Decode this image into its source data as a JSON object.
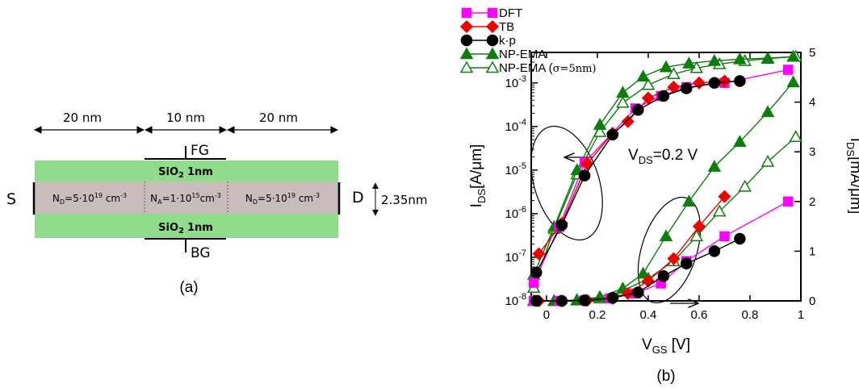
{
  "panel_a": {
    "caption": "(a)",
    "dims": [
      "20 nm",
      "10 nm",
      "20 nm"
    ],
    "gate_top": "FG",
    "gate_bottom": "BG",
    "source": "S",
    "drain": "D",
    "oxide_label": "SiO",
    "oxide_sub": "2",
    "oxide_thickness": "1nm",
    "thickness": "2.35nm",
    "regions": [
      {
        "n": "N",
        "sub": "D",
        "eq": "=5·10",
        "exp": "19",
        "unit": " cm",
        "uexp": "-3"
      },
      {
        "n": "N",
        "sub": "A",
        "eq": "=1·10",
        "exp": "15",
        "unit": "cm",
        "uexp": "-3"
      },
      {
        "n": "N",
        "sub": "D",
        "eq": "=5·10",
        "exp": "19",
        "unit": " cm",
        "uexp": "-3"
      }
    ],
    "colors": {
      "oxide": "#8fdc8a",
      "silicon": "#c9bcbc"
    }
  },
  "panel_b": {
    "caption": "(b)",
    "xlabel_main": "V",
    "xlabel_sub": "GS",
    "xlabel_unit": " [V]",
    "ylabel_left_main": "I",
    "ylabel_left_sub": "DS",
    "ylabel_left_unit": "[A/μm]",
    "ylabel_right_main": "I",
    "ylabel_right_sub": "DS",
    "ylabel_right_unit": "[mA/μm]",
    "annotation_main": "V",
    "annotation_sub": "DS",
    "annotation_rest": "=0.2 V",
    "legend": [
      "DFT",
      "TB",
      "k·p",
      "NP-EMA",
      "NP-EMA ("
    ],
    "legend_sigma": "σ=5nm)"
  },
  "chart_data": {
    "type": "line",
    "xlabel": "VGS [V]",
    "ylabel_left": "IDS[A/μm]",
    "ylabel_right": "IDS[mA/μm]",
    "xlim": [
      -0.06,
      1.0
    ],
    "ylim_left_log": [
      1e-08,
      0.005
    ],
    "ylim_right_linear": [
      0,
      5
    ],
    "x_ticks": [
      "0",
      "0.2",
      "0.4",
      "0.6",
      "0.8",
      "1"
    ],
    "y_left_ticks": [
      "10-8",
      "10-7",
      "10-6",
      "10-5",
      "10-4",
      "10-3"
    ],
    "y_right_ticks": [
      "0",
      "1",
      "2",
      "3",
      "4",
      "5"
    ],
    "annotation": "VDS=0.2 V",
    "legend_position": "top-left outside",
    "series": [
      {
        "name": "DFT",
        "color": "#ff00ff",
        "marker": "square",
        "filled": true,
        "log": [
          [
            -0.05,
            2.6e-08
          ],
          [
            0.05,
            5e-07
          ],
          [
            0.15,
            1.5e-05
          ],
          [
            0.35,
            0.00026
          ],
          [
            0.45,
            0.0005
          ],
          [
            0.55,
            0.0008
          ],
          [
            0.7,
            0.001
          ],
          [
            0.95,
            0.002
          ]
        ],
        "linear": [
          [
            -0.05,
            0.0
          ],
          [
            0.05,
            0.0
          ],
          [
            0.15,
            0.01
          ],
          [
            0.25,
            0.05
          ],
          [
            0.35,
            0.15
          ],
          [
            0.45,
            0.35
          ],
          [
            0.55,
            0.8
          ],
          [
            0.7,
            1.3
          ],
          [
            0.95,
            2.0
          ]
        ]
      },
      {
        "name": "TB",
        "color": "#ee0000",
        "marker": "diamond",
        "filled": true,
        "log": [
          [
            -0.03,
            1.2e-07
          ],
          [
            0.06,
            6e-07
          ],
          [
            0.16,
            1.4e-05
          ],
          [
            0.26,
            7e-05
          ],
          [
            0.32,
            0.00013
          ],
          [
            0.4,
            0.00045
          ],
          [
            0.5,
            0.0008
          ],
          [
            0.6,
            0.001
          ],
          [
            0.7,
            0.0011
          ]
        ],
        "linear": [
          [
            -0.03,
            0.0
          ],
          [
            0.06,
            0.0
          ],
          [
            0.16,
            0.01
          ],
          [
            0.26,
            0.05
          ],
          [
            0.32,
            0.15
          ],
          [
            0.4,
            0.4
          ],
          [
            0.5,
            0.85
          ],
          [
            0.6,
            1.5
          ],
          [
            0.7,
            2.1
          ]
        ]
      },
      {
        "name": "k·p",
        "color": "#000000",
        "marker": "circle",
        "filled": true,
        "log": [
          [
            -0.04,
            4.5e-08
          ],
          [
            0.06,
            5.5e-07
          ],
          [
            0.15,
            7.5e-06
          ],
          [
            0.26,
            6.5e-05
          ],
          [
            0.36,
            0.00024
          ],
          [
            0.46,
            0.0005
          ],
          [
            0.55,
            0.00075
          ],
          [
            0.66,
            0.001
          ],
          [
            0.76,
            0.0011
          ]
        ],
        "linear": [
          [
            -0.04,
            0.0
          ],
          [
            0.06,
            0.0
          ],
          [
            0.15,
            0.01
          ],
          [
            0.26,
            0.06
          ],
          [
            0.36,
            0.17
          ],
          [
            0.46,
            0.5
          ],
          [
            0.55,
            0.75
          ],
          [
            0.66,
            1.0
          ],
          [
            0.76,
            1.25
          ]
        ]
      },
      {
        "name": "NP-EMA",
        "color": "#0e7d0e",
        "marker": "triangle",
        "filled": true,
        "log": [
          [
            -0.05,
            4e-08
          ],
          [
            0.03,
            5e-07
          ],
          [
            0.12,
            1e-05
          ],
          [
            0.21,
            0.00011
          ],
          [
            0.3,
            0.0006
          ],
          [
            0.38,
            0.0014
          ],
          [
            0.47,
            0.0023
          ],
          [
            0.56,
            0.0028
          ],
          [
            0.66,
            0.0032
          ],
          [
            0.76,
            0.0035
          ],
          [
            0.87,
            0.0037
          ],
          [
            0.97,
            0.004
          ]
        ],
        "linear": [
          [
            -0.05,
            0.0
          ],
          [
            0.03,
            0.0
          ],
          [
            0.12,
            0.02
          ],
          [
            0.21,
            0.08
          ],
          [
            0.3,
            0.25
          ],
          [
            0.38,
            0.55
          ],
          [
            0.47,
            1.3
          ],
          [
            0.56,
            2.0
          ],
          [
            0.66,
            2.7
          ],
          [
            0.76,
            3.2
          ],
          [
            0.87,
            3.8
          ],
          [
            0.97,
            4.4
          ]
        ]
      },
      {
        "name": "NP-EMA (σ=5nm)",
        "color": "#0e7d0e",
        "marker": "triangle",
        "filled": false,
        "log": [
          [
            -0.05,
            2e-08
          ],
          [
            0.03,
            4.5e-07
          ],
          [
            0.12,
            8e-06
          ],
          [
            0.21,
            7.5e-05
          ],
          [
            0.3,
            0.00035
          ],
          [
            0.4,
            0.0009
          ],
          [
            0.5,
            0.0016
          ],
          [
            0.59,
            0.0022
          ],
          [
            0.68,
            0.0027
          ],
          [
            0.78,
            0.0032
          ],
          [
            0.87,
            0.0036
          ],
          [
            0.98,
            0.004
          ]
        ],
        "linear": [
          [
            -0.05,
            0.0
          ],
          [
            0.03,
            0.0
          ],
          [
            0.12,
            0.01
          ],
          [
            0.21,
            0.05
          ],
          [
            0.3,
            0.2
          ],
          [
            0.4,
            0.45
          ],
          [
            0.5,
            0.8
          ],
          [
            0.59,
            1.3
          ],
          [
            0.68,
            1.8
          ],
          [
            0.78,
            2.3
          ],
          [
            0.87,
            2.8
          ],
          [
            0.98,
            3.3
          ]
        ]
      }
    ]
  }
}
